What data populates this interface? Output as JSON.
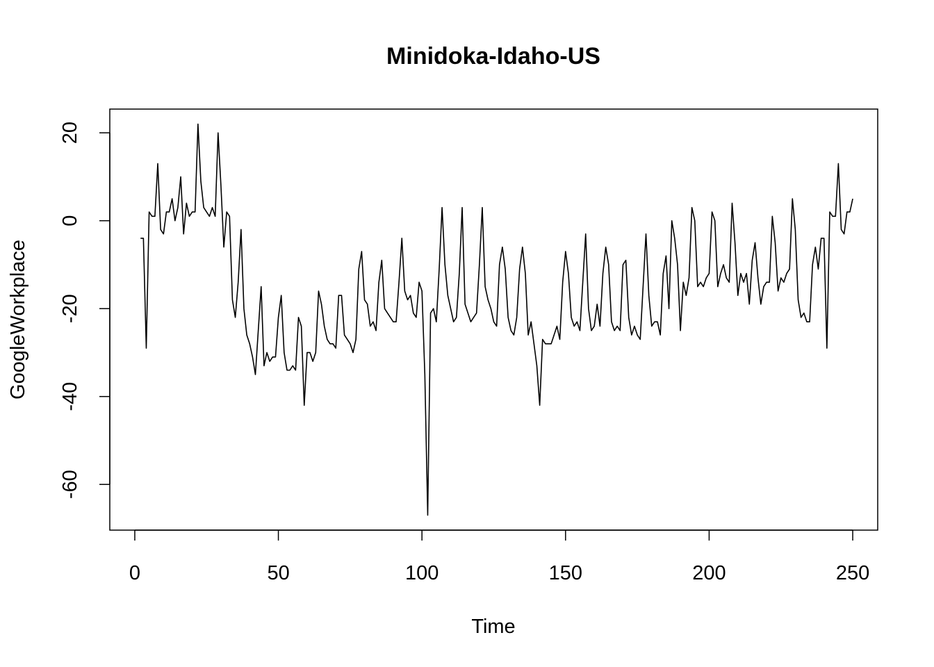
{
  "chart_data": {
    "type": "line",
    "title": "Minidoka-Idaho-US",
    "xlabel": "Time",
    "ylabel": "GoogleWorkplace",
    "xlim": [
      -8.7,
      258.7
    ],
    "ylim": [
      -70.4,
      25.4
    ],
    "xticks": [
      0,
      50,
      100,
      150,
      200,
      250
    ],
    "yticks": [
      -60,
      -40,
      -20,
      0,
      20
    ],
    "xtick_labels": [
      "0",
      "50",
      "100",
      "150",
      "200",
      "250"
    ],
    "ytick_labels": [
      "-60",
      "-40",
      "-20",
      "0",
      "20"
    ],
    "grid": false,
    "line_color": "#000000",
    "x_start": 2,
    "values": [
      -4,
      -4,
      -29,
      2,
      1,
      1,
      13,
      -2,
      -3,
      2,
      2,
      5,
      0,
      3,
      10,
      -3,
      4,
      1,
      2,
      2,
      22,
      9,
      3,
      2,
      1,
      3,
      1,
      20,
      8,
      -6,
      2,
      1,
      -18,
      -22,
      -14,
      -2,
      -20,
      -26,
      -28,
      -31,
      -35,
      -25,
      -15,
      -33,
      -30,
      -32,
      -31,
      -31,
      -22,
      -17,
      -30,
      -34,
      -34,
      -33,
      -34,
      -22,
      -24,
      -42,
      -30,
      -30,
      -32,
      -30,
      -16,
      -19,
      -24,
      -27,
      -28,
      -28,
      -29,
      -17,
      -17,
      -26,
      -27,
      -28,
      -30,
      -27,
      -11,
      -7,
      -18,
      -19,
      -24,
      -23,
      -25,
      -14,
      -9,
      -20,
      -21,
      -22,
      -23,
      -23,
      -14,
      -4,
      -16,
      -18,
      -17,
      -21,
      -22,
      -14,
      -16,
      -35,
      -67,
      -21,
      -20,
      -23,
      -11,
      3,
      -10,
      -17,
      -20,
      -23,
      -22,
      -12,
      3,
      -19,
      -21,
      -23,
      -22,
      -21,
      -10,
      3,
      -15,
      -18,
      -20,
      -23,
      -24,
      -10,
      -6,
      -11,
      -22,
      -25,
      -26,
      -22,
      -11,
      -6,
      -12,
      -26,
      -23,
      -28,
      -33,
      -42,
      -27,
      -28,
      -28,
      -28,
      -26,
      -24,
      -27,
      -14,
      -7,
      -12,
      -22,
      -24,
      -23,
      -25,
      -14,
      -3,
      -20,
      -25,
      -24,
      -19,
      -24,
      -12,
      -6,
      -10,
      -23,
      -25,
      -24,
      -25,
      -10,
      -9,
      -22,
      -26,
      -24,
      -26,
      -27,
      -15,
      -3,
      -17,
      -24,
      -23,
      -23,
      -26,
      -12,
      -8,
      -20,
      0,
      -4,
      -10,
      -25,
      -14,
      -17,
      -13,
      3,
      0,
      -15,
      -14,
      -15,
      -13,
      -12,
      2,
      0,
      -15,
      -12,
      -10,
      -13,
      -14,
      4,
      -5,
      -17,
      -12,
      -14,
      -12,
      -19,
      -9,
      -5,
      -13,
      -19,
      -15,
      -14,
      -14,
      1,
      -5,
      -16,
      -13,
      -14,
      -12,
      -11,
      5,
      -2,
      -18,
      -22,
      -21,
      -23,
      -23,
      -10,
      -6,
      -11,
      -4,
      -4,
      -29,
      2,
      1,
      1,
      13,
      -2,
      -3,
      2,
      2,
      5
    ]
  }
}
